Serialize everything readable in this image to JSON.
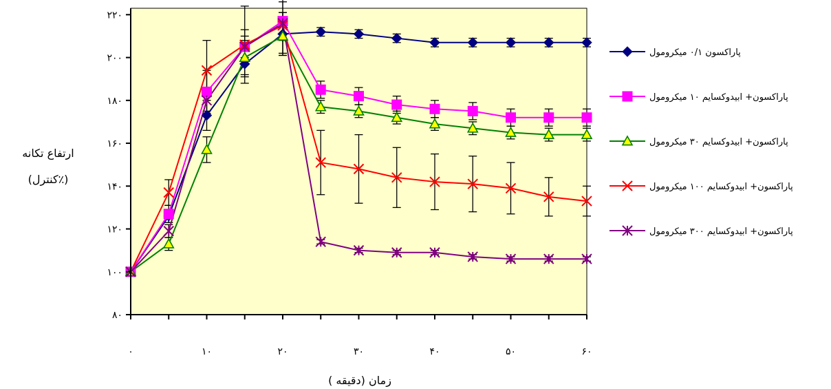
{
  "chart_data": {
    "type": "line",
    "xlabel": "زمان (دقیقه )",
    "ylabel_lines": [
      "ارتفاع تکانه",
      "(٪کنترل)"
    ],
    "xlim": [
      0,
      60
    ],
    "ylim": [
      80,
      223
    ],
    "x": [
      0,
      5,
      10,
      15,
      20,
      25,
      30,
      35,
      40,
      45,
      50,
      55,
      60
    ],
    "x_tick_values": [
      0,
      10,
      20,
      30,
      40,
      50,
      60
    ],
    "x_tick_labels": [
      "۰",
      "۱۰",
      "۲۰",
      "۳۰",
      "۴۰",
      "۵۰",
      "۶۰"
    ],
    "y_tick_values": [
      80,
      100,
      120,
      140,
      160,
      180,
      200,
      220
    ],
    "y_tick_labels": [
      "۸۰",
      "۱۰۰",
      "۱۲۰",
      "۱۴۰",
      "۱۶۰",
      "۱۸۰",
      "۲۰۰",
      "۲۲۰"
    ],
    "grid": false,
    "legend_position": "right",
    "plot_background": "#ffffcc",
    "series": [
      {
        "name": "پاراکسون ۰/۱ میکرومول",
        "color": "#000080",
        "marker": "diamond",
        "values": [
          100,
          126,
          173,
          197,
          211,
          212,
          211,
          209,
          207,
          207,
          207,
          207,
          207
        ],
        "errors": [
          0,
          3,
          7,
          6,
          10,
          2,
          2,
          2,
          2,
          2,
          2,
          2,
          2
        ]
      },
      {
        "name": "پاراکسون+ ابیدوکسایم ۱۰ میکرومول",
        "color": "#ff00ff",
        "marker": "square",
        "values": [
          100,
          127,
          184,
          205,
          217,
          185,
          182,
          178,
          176,
          175,
          172,
          172,
          172
        ],
        "errors": [
          0,
          4,
          10,
          8,
          9,
          4,
          4,
          4,
          4,
          4,
          4,
          4,
          4
        ]
      },
      {
        "name": "پاراکسون+ ابیدوکسایم ۳۰ میکرومول",
        "color": "#008000",
        "marker": "triangle",
        "values": [
          100,
          113,
          157,
          200,
          210,
          177,
          175,
          172,
          169,
          167,
          165,
          164,
          164
        ],
        "errors": [
          0,
          3,
          6,
          8,
          8,
          3,
          3,
          3,
          3,
          3,
          3,
          3,
          3
        ]
      },
      {
        "name": "پاراکسون+ ابیدوکسایم ۱۰۰ میکرومول",
        "color": "#ff0000",
        "marker": "x",
        "values": [
          100,
          137,
          194,
          206,
          215,
          151,
          148,
          144,
          142,
          141,
          139,
          135,
          133
        ],
        "errors": [
          0,
          6,
          14,
          18,
          14,
          15,
          16,
          14,
          13,
          13,
          12,
          9,
          7
        ]
      },
      {
        "name": "پاراکسون+ ابیدوکسایم ۳۰۰ میکرومول",
        "color": "#800080",
        "marker": "asterisk",
        "values": [
          100,
          119,
          180,
          205,
          216,
          114,
          110,
          109,
          109,
          107,
          106,
          106,
          106
        ],
        "errors": [
          0,
          3,
          5,
          5,
          5,
          1,
          1,
          1,
          1,
          1,
          1,
          1,
          1
        ]
      }
    ]
  }
}
